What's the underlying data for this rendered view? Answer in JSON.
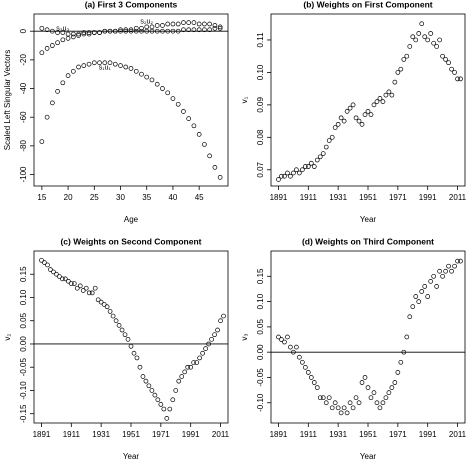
{
  "chart_data": [
    {
      "type": "scatter",
      "title": "(a) First 3 Components",
      "x_label": "Age",
      "y_label": "Scaled Left Singular Vectors",
      "x": [
        15,
        16,
        17,
        18,
        19,
        20,
        21,
        22,
        23,
        24,
        25,
        26,
        27,
        28,
        29,
        30,
        31,
        32,
        33,
        34,
        35,
        36,
        37,
        38,
        39,
        40,
        41,
        42,
        43,
        44,
        45,
        46,
        47,
        48,
        49
      ],
      "series": [
        {
          "name": "s₁u₁",
          "color": "#000000",
          "values": [
            -77,
            -60,
            -50,
            -42,
            -36,
            -31,
            -28,
            -25,
            -24,
            -23,
            -22,
            -22,
            -22,
            -22,
            -23,
            -24,
            -25,
            -26,
            -28,
            -30,
            -32,
            -34,
            -37,
            -40,
            -43,
            -47,
            -51,
            -56,
            -61,
            -66,
            -72,
            -79,
            -87,
            -95,
            -102
          ]
        },
        {
          "name": "s₂u₂",
          "color": "#000000",
          "values": [
            -15,
            -12,
            -10,
            -8,
            -6,
            -5,
            -4,
            -3,
            -2,
            -2,
            -1,
            -1,
            0,
            0,
            0,
            1,
            1,
            1,
            2,
            2,
            3,
            3,
            4,
            4,
            5,
            5,
            5,
            6,
            6,
            6,
            5,
            5,
            5,
            4,
            3
          ]
        },
        {
          "name": "s₃u₃",
          "color": "#000000",
          "values": [
            2,
            1,
            0,
            -1,
            -1,
            -2,
            -2,
            -2,
            -1,
            -1,
            -1,
            -1,
            0,
            0,
            0,
            0,
            0,
            0,
            0,
            0,
            0,
            0,
            0,
            0,
            0,
            0,
            0,
            1,
            1,
            1,
            1,
            1,
            1,
            2,
            2
          ]
        }
      ],
      "hline": 0,
      "xlim": [
        13.5,
        50.5
      ],
      "xticks": [
        15,
        20,
        25,
        30,
        35,
        40,
        45
      ],
      "ylim": [
        -108,
        12
      ],
      "yticks": [
        0,
        -20,
        -40,
        -60,
        -80,
        -100
      ]
    },
    {
      "type": "scatter",
      "title": "(b) Weights on First Component",
      "x_label": "Year",
      "y_label": "v₁",
      "color": "#000000",
      "x": [
        1891,
        1893,
        1895,
        1897,
        1899,
        1901,
        1903,
        1905,
        1907,
        1909,
        1911,
        1913,
        1915,
        1917,
        1919,
        1921,
        1923,
        1925,
        1927,
        1929,
        1931,
        1933,
        1935,
        1937,
        1939,
        1941,
        1943,
        1945,
        1947,
        1949,
        1951,
        1953,
        1955,
        1957,
        1959,
        1961,
        1963,
        1965,
        1967,
        1969,
        1971,
        1973,
        1975,
        1977,
        1979,
        1981,
        1983,
        1985,
        1987,
        1989,
        1991,
        1993,
        1995,
        1997,
        1999,
        2001,
        2003,
        2005,
        2007,
        2009,
        2011,
        2013
      ],
      "values": [
        0.067,
        0.068,
        0.068,
        0.069,
        0.068,
        0.069,
        0.07,
        0.069,
        0.07,
        0.071,
        0.071,
        0.072,
        0.071,
        0.073,
        0.074,
        0.075,
        0.077,
        0.079,
        0.08,
        0.083,
        0.084,
        0.086,
        0.085,
        0.088,
        0.089,
        0.09,
        0.086,
        0.085,
        0.084,
        0.087,
        0.088,
        0.087,
        0.09,
        0.091,
        0.092,
        0.091,
        0.093,
        0.094,
        0.093,
        0.097,
        0.1,
        0.101,
        0.104,
        0.105,
        0.108,
        0.111,
        0.11,
        0.112,
        0.115,
        0.111,
        0.11,
        0.112,
        0.109,
        0.108,
        0.11,
        0.105,
        0.104,
        0.103,
        0.101,
        0.1,
        0.098,
        0.098
      ],
      "xlim": [
        1886,
        2016
      ],
      "xticks": [
        1891,
        1911,
        1931,
        1951,
        1971,
        1991,
        2011
      ],
      "ylim": [
        0.065,
        0.118
      ],
      "yticks": [
        0.07,
        0.08,
        0.09,
        {
          "value": 0.1,
          "label": "0.10"
        },
        0.11
      ]
    },
    {
      "type": "scatter",
      "title": "(c) Weights on Second Component",
      "x_label": "Year",
      "y_label": "v₂",
      "color": "#000000",
      "x": [
        1891,
        1893,
        1895,
        1897,
        1899,
        1901,
        1903,
        1905,
        1907,
        1909,
        1911,
        1913,
        1915,
        1917,
        1919,
        1921,
        1923,
        1925,
        1927,
        1929,
        1931,
        1933,
        1935,
        1937,
        1939,
        1941,
        1943,
        1945,
        1947,
        1949,
        1951,
        1953,
        1955,
        1957,
        1959,
        1961,
        1963,
        1965,
        1967,
        1969,
        1971,
        1973,
        1975,
        1977,
        1979,
        1981,
        1983,
        1985,
        1987,
        1989,
        1991,
        1993,
        1995,
        1997,
        1999,
        2001,
        2003,
        2005,
        2007,
        2009,
        2011,
        2013
      ],
      "values": [
        0.18,
        0.175,
        0.17,
        0.16,
        0.155,
        0.15,
        0.145,
        0.14,
        0.14,
        0.135,
        0.13,
        0.13,
        0.12,
        0.125,
        0.115,
        0.12,
        0.11,
        0.11,
        0.12,
        0.095,
        0.09,
        0.085,
        0.08,
        0.07,
        0.06,
        0.05,
        0.04,
        0.03,
        0.02,
        0.01,
        -0.005,
        -0.02,
        -0.03,
        -0.05,
        -0.07,
        -0.08,
        -0.09,
        -0.1,
        -0.11,
        -0.12,
        -0.13,
        -0.14,
        -0.16,
        -0.14,
        -0.12,
        -0.1,
        -0.08,
        -0.07,
        -0.06,
        -0.05,
        -0.05,
        -0.04,
        -0.04,
        -0.03,
        -0.02,
        -0.01,
        0,
        0.01,
        0.02,
        0.03,
        0.05,
        0.06
      ],
      "hline": 0,
      "xlim": [
        1886,
        2016
      ],
      "xticks": [
        1891,
        1911,
        1931,
        1951,
        1971,
        1991,
        2011
      ],
      "ylim": [
        -0.17,
        0.2
      ],
      "yticks": [
        -0.15,
        {
          "value": -0.1,
          "label": "-0.10"
        },
        -0.05,
        {
          "value": 0,
          "label": "0.00"
        },
        0.05,
        {
          "value": 0.1,
          "label": "0.10"
        },
        0.15
      ]
    },
    {
      "type": "scatter",
      "title": "(d) Weights on Third Component",
      "x_label": "Year",
      "y_label": "v₃",
      "color": "#000000",
      "x": [
        1891,
        1893,
        1895,
        1897,
        1899,
        1901,
        1903,
        1905,
        1907,
        1909,
        1911,
        1913,
        1915,
        1917,
        1919,
        1921,
        1923,
        1925,
        1927,
        1929,
        1931,
        1933,
        1935,
        1937,
        1939,
        1941,
        1943,
        1945,
        1947,
        1949,
        1951,
        1953,
        1955,
        1957,
        1959,
        1961,
        1963,
        1965,
        1967,
        1969,
        1971,
        1973,
        1975,
        1977,
        1979,
        1981,
        1983,
        1985,
        1987,
        1989,
        1991,
        1993,
        1995,
        1997,
        1999,
        2001,
        2003,
        2005,
        2007,
        2009,
        2011,
        2013
      ],
      "values": [
        0.03,
        0.025,
        0.02,
        0.03,
        0.01,
        0,
        0.01,
        -0.01,
        -0.02,
        -0.03,
        -0.04,
        -0.05,
        -0.06,
        -0.07,
        -0.09,
        -0.09,
        -0.1,
        -0.09,
        -0.11,
        -0.1,
        -0.11,
        -0.12,
        -0.11,
        -0.12,
        -0.1,
        -0.11,
        -0.09,
        -0.1,
        -0.06,
        -0.05,
        -0.07,
        -0.09,
        -0.08,
        -0.1,
        -0.11,
        -0.1,
        -0.09,
        -0.08,
        -0.07,
        -0.06,
        -0.04,
        -0.02,
        0,
        0.03,
        0.07,
        0.09,
        0.11,
        0.1,
        0.12,
        0.13,
        0.11,
        0.14,
        0.15,
        0.13,
        0.16,
        0.15,
        0.16,
        0.17,
        0.16,
        0.17,
        0.18,
        0.18
      ],
      "hline": 0,
      "xlim": [
        1886,
        2016
      ],
      "xticks": [
        1891,
        1911,
        1931,
        1951,
        1971,
        1991,
        2011
      ],
      "ylim": [
        -0.14,
        0.2
      ],
      "yticks": [
        {
          "value": -0.1,
          "label": "-0.10"
        },
        -0.05,
        {
          "value": 0,
          "label": "0.00"
        },
        0.05,
        {
          "value": 0.1,
          "label": "0.10"
        },
        0.15
      ]
    }
  ]
}
